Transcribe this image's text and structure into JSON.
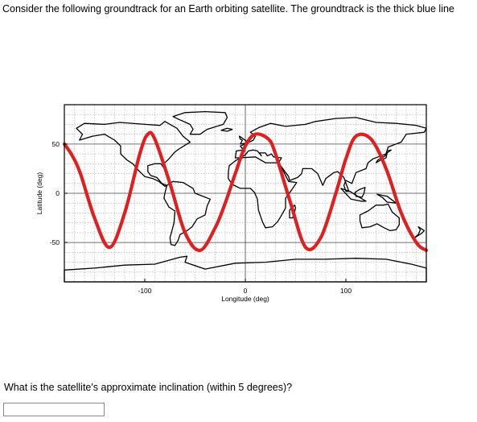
{
  "question": {
    "intro": "Consider the following groundtrack for an Earth orbiting satellite. The groundtrack is the thick blue line",
    "prompt": "What is the satellite's approximate inclination (within 5 degrees)?",
    "answer_value": ""
  },
  "chart_data": {
    "type": "line",
    "title": "",
    "xlabel": "Longitude (deg)",
    "ylabel": "Latitude (deg)",
    "xlim": [
      -180,
      180
    ],
    "ylim": [
      -90,
      90
    ],
    "xticks": [
      -100,
      0,
      100
    ],
    "yticks": [
      50,
      0,
      -50
    ],
    "grid": true,
    "background": "world map",
    "series": [
      {
        "color": "#e02020",
        "x": [
          -180,
          -172,
          -164,
          -150,
          -135,
          -120,
          -105,
          -97,
          -90,
          -75,
          -60,
          -45,
          -30,
          -20,
          -10,
          0,
          10,
          23,
          30,
          45,
          60,
          75,
          90,
          100,
          110,
          125,
          140,
          155,
          170,
          180
        ],
        "y": [
          50,
          38,
          20,
          -25,
          -55,
          -20,
          40,
          60,
          55,
          10,
          -40,
          -58,
          -35,
          -10,
          20,
          48,
          60,
          55,
          40,
          -10,
          -55,
          -45,
          0,
          35,
          58,
          55,
          25,
          -20,
          -50,
          -58
        ]
      }
    ]
  }
}
